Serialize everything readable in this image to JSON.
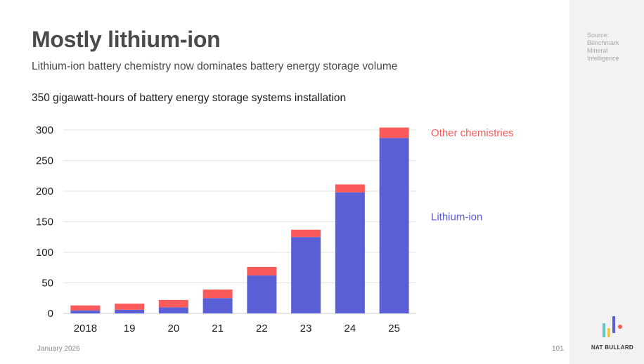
{
  "slide": {
    "title": "Mostly lithium-ion",
    "subtitle": "Lithium-ion battery chemistry now dominates battery energy storage volume",
    "source": "Source: Benchmark Mineral Intelligence",
    "date": "January 2026",
    "page_number": "101",
    "brand": "NAT BULLARD"
  },
  "colors": {
    "lithium_ion": "#5b5fd6",
    "other": "#fa5a5a",
    "grid": "#e3e3e3",
    "text": "#1a1a1a",
    "sidebar": "#f2f2f2",
    "logo_teal": "#5ec8c8",
    "logo_yellow": "#f5c242",
    "logo_indigo": "#5b5fd6",
    "logo_red": "#fa5a5a"
  },
  "chart_data": {
    "type": "bar",
    "stacked": true,
    "title": "350 gigawatt-hours of battery energy storage systems installation",
    "categories": [
      "2018",
      "19",
      "20",
      "21",
      "22",
      "23",
      "24",
      "25"
    ],
    "series": [
      {
        "name": "Lithium-ion",
        "values": [
          5,
          6,
          10,
          25,
          62,
          125,
          198,
          287
        ]
      },
      {
        "name": "Other chemistries",
        "values": [
          8,
          10,
          12,
          14,
          14,
          12,
          13,
          17
        ]
      }
    ],
    "yticks": [
      0,
      50,
      100,
      150,
      200,
      250,
      300
    ],
    "ylim": [
      0,
      300
    ],
    "xlabel": "",
    "ylabel": "",
    "legend_position": "right, inline labels"
  }
}
